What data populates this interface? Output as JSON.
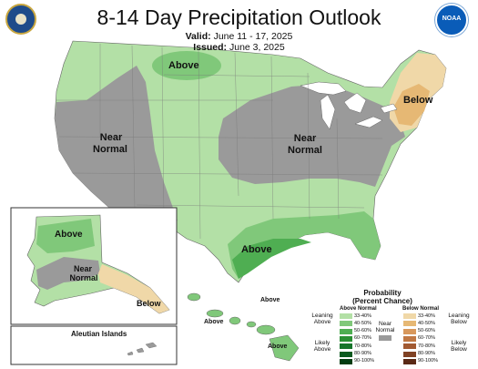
{
  "title": "8-14 Day Precipitation Outlook",
  "valid_label": "Valid:",
  "valid_value": "June 11 - 17, 2025",
  "issued_label": "Issued:",
  "issued_value": "June 3, 2025",
  "logos": [
    "department-of-commerce-seal",
    "noaa-logo"
  ],
  "noaa_text": "NOAA",
  "regions": {
    "north_central_above": "Above",
    "west_near_normal_1": "Near",
    "west_near_normal_2": "Normal",
    "central_near_normal_1": "Near",
    "central_near_normal_2": "Normal",
    "northeast_below": "Below",
    "gulf_above": "Above"
  },
  "alaska": {
    "above": "Above",
    "near_1": "Near",
    "near_2": "Normal",
    "below": "Below",
    "aleutian_title": "Aleutian Islands"
  },
  "hawaii": {
    "above_1": "Above",
    "above_2": "Above",
    "above_3": "Above"
  },
  "legend": {
    "title_1": "Probability",
    "title_2": "(Percent Chance)",
    "above_header": "Above Normal",
    "below_header": "Below Normal",
    "near_label_1": "Near",
    "near_label_2": "Normal",
    "leaning_above_1": "Leaning",
    "leaning_above_2": "Above",
    "likely_above_1": "Likely",
    "likely_above_2": "Above",
    "leaning_below_1": "Leaning",
    "leaning_below_2": "Below",
    "likely_below_1": "Likely",
    "likely_below_2": "Below",
    "ranges": [
      "33-40%",
      "40-50%",
      "50-60%",
      "60-70%",
      "70-80%",
      "80-90%",
      "90-100%"
    ],
    "above_colors": [
      "#b3e0a6",
      "#80c87a",
      "#4fae52",
      "#2a8f33",
      "#16742a",
      "#0b5a1f",
      "#043d12"
    ],
    "below_colors": [
      "#f0d8a8",
      "#e6b874",
      "#d8985c",
      "#c07844",
      "#a25a32",
      "#804224",
      "#5a2a16"
    ],
    "near_color": "#9a9a9a"
  },
  "colors": {
    "above_light": "#b3e0a6",
    "above_mid": "#80c87a",
    "above_strong": "#4fae52",
    "near": "#9a9a9a",
    "below_light": "#f0d8a8",
    "below_mid": "#e6b874"
  }
}
